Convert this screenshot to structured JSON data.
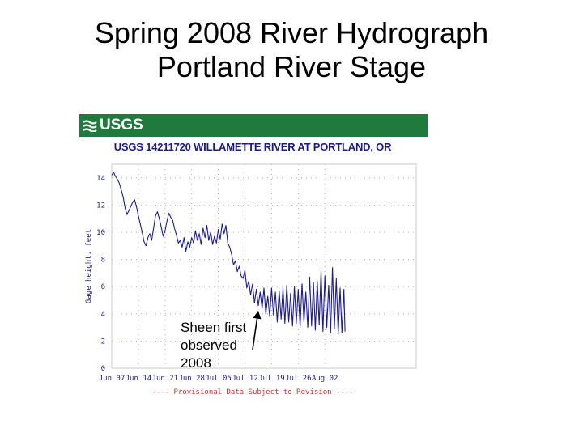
{
  "slide": {
    "title_line1": "Spring 2008 River Hydrograph",
    "title_line2": "Portland River Stage"
  },
  "brand": {
    "logo_text": "USGS",
    "bar_color": "#1f7a3c"
  },
  "chart_data": {
    "type": "line",
    "title": "USGS 14211720 WILLAMETTE RIVER AT PORTLAND, OR",
    "ylabel": "Gage height, feet",
    "xlabel": "",
    "ylim": [
      0,
      15
    ],
    "yticks": [
      0,
      2,
      4,
      6,
      8,
      10,
      12,
      14
    ],
    "xlim": [
      0,
      80
    ],
    "xticks": [
      {
        "x": 0,
        "label": "Jun 07"
      },
      {
        "x": 7,
        "label": "Jun 14"
      },
      {
        "x": 14,
        "label": "Jun 21"
      },
      {
        "x": 21,
        "label": "Jun 28"
      },
      {
        "x": 28,
        "label": "Jul 05"
      },
      {
        "x": 35,
        "label": "Jul 12"
      },
      {
        "x": 42,
        "label": "Jul 19"
      },
      {
        "x": 49,
        "label": "Jul 26"
      },
      {
        "x": 56,
        "label": "Aug 02"
      }
    ],
    "grid": true,
    "footer": "---- Provisional Data Subject to Revision ----",
    "line_color": "#1a1aa0",
    "series": [
      {
        "name": "Gage height",
        "points": [
          [
            0,
            14.2
          ],
          [
            0.5,
            14.4
          ],
          [
            1,
            14.1
          ],
          [
            1.5,
            13.9
          ],
          [
            2,
            13.6
          ],
          [
            2.5,
            13.1
          ],
          [
            3,
            12.6
          ],
          [
            3.5,
            11.8
          ],
          [
            4,
            11.3
          ],
          [
            4.5,
            11.6
          ],
          [
            5,
            11.9
          ],
          [
            5.5,
            12.2
          ],
          [
            6,
            12.4
          ],
          [
            6.5,
            11.9
          ],
          [
            7,
            11.2
          ],
          [
            7.5,
            10.6
          ],
          [
            8,
            10.0
          ],
          [
            8.5,
            9.3
          ],
          [
            9,
            9.0
          ],
          [
            9.5,
            9.6
          ],
          [
            10,
            9.9
          ],
          [
            10.5,
            9.4
          ],
          [
            11,
            10.3
          ],
          [
            11.5,
            11.2
          ],
          [
            12,
            11.5
          ],
          [
            12.5,
            11.0
          ],
          [
            13,
            10.4
          ],
          [
            13.5,
            9.7
          ],
          [
            14,
            10.1
          ],
          [
            14.5,
            10.8
          ],
          [
            15,
            11.4
          ],
          [
            15.5,
            11.1
          ],
          [
            16,
            10.9
          ],
          [
            16.5,
            10.3
          ],
          [
            17,
            9.8
          ],
          [
            17.5,
            9.2
          ],
          [
            18,
            9.4
          ],
          [
            18.5,
            8.9
          ],
          [
            19,
            9.6
          ],
          [
            19.5,
            8.6
          ],
          [
            20,
            9.3
          ],
          [
            20.5,
            8.9
          ],
          [
            21,
            9.6
          ],
          [
            21.5,
            9.2
          ],
          [
            22,
            10.1
          ],
          [
            22.5,
            9.4
          ],
          [
            23,
            9.9
          ],
          [
            23.5,
            9.1
          ],
          [
            24,
            10.3
          ],
          [
            24.5,
            9.6
          ],
          [
            25,
            10.5
          ],
          [
            25.5,
            9.4
          ],
          [
            26,
            10.0
          ],
          [
            26.5,
            9.1
          ],
          [
            27,
            9.7
          ],
          [
            27.5,
            9.2
          ],
          [
            28,
            10.2
          ],
          [
            28.5,
            9.5
          ],
          [
            29,
            10.6
          ],
          [
            29.5,
            9.9
          ],
          [
            30,
            10.5
          ],
          [
            30.5,
            9.2
          ],
          [
            31,
            8.9
          ],
          [
            31.5,
            8.4
          ],
          [
            32,
            7.6
          ],
          [
            32.5,
            7.9
          ],
          [
            33,
            7.1
          ],
          [
            33.5,
            7.5
          ],
          [
            34,
            6.8
          ],
          [
            34.5,
            6.6
          ],
          [
            35,
            7.2
          ],
          [
            35.5,
            5.9
          ],
          [
            36,
            6.4
          ],
          [
            36.5,
            5.4
          ],
          [
            37,
            6.2
          ],
          [
            37.5,
            4.8
          ],
          [
            38,
            5.8
          ],
          [
            38.5,
            4.6
          ],
          [
            39,
            5.6
          ],
          [
            39.5,
            4.4
          ],
          [
            40,
            5.9
          ],
          [
            40.5,
            4.0
          ],
          [
            41,
            5.3
          ],
          [
            41.5,
            3.8
          ],
          [
            42,
            5.9
          ],
          [
            42.5,
            3.9
          ],
          [
            43,
            5.6
          ],
          [
            43.5,
            3.4
          ],
          [
            44,
            5.7
          ],
          [
            44.5,
            3.6
          ],
          [
            45,
            5.9
          ],
          [
            45.5,
            3.3
          ],
          [
            46,
            6.1
          ],
          [
            46.5,
            3.4
          ],
          [
            47,
            5.5
          ],
          [
            47.5,
            3.1
          ],
          [
            48,
            6.0
          ],
          [
            48.5,
            3.3
          ],
          [
            49,
            5.8
          ],
          [
            49.5,
            3.0
          ],
          [
            50,
            6.2
          ],
          [
            50.5,
            3.4
          ],
          [
            51,
            5.6
          ],
          [
            51.5,
            3.0
          ],
          [
            52,
            6.7
          ],
          [
            52.5,
            3.1
          ],
          [
            53,
            6.3
          ],
          [
            53.5,
            2.8
          ],
          [
            54,
            6.4
          ],
          [
            54.5,
            3.2
          ],
          [
            55,
            7.2
          ],
          [
            55.5,
            2.7
          ],
          [
            56,
            6.8
          ],
          [
            56.5,
            3.0
          ],
          [
            57,
            6.1
          ],
          [
            57.5,
            2.6
          ],
          [
            58,
            7.4
          ],
          [
            58.5,
            2.9
          ],
          [
            59,
            6.6
          ],
          [
            59.5,
            2.5
          ],
          [
            60,
            5.9
          ],
          [
            60.5,
            2.6
          ],
          [
            61,
            5.8
          ],
          [
            61.3,
            2.7
          ]
        ]
      }
    ],
    "annotation": {
      "text": "Sheen first\nobserved\n2008",
      "arrow_to": [
        38.5,
        4.6
      ]
    }
  }
}
